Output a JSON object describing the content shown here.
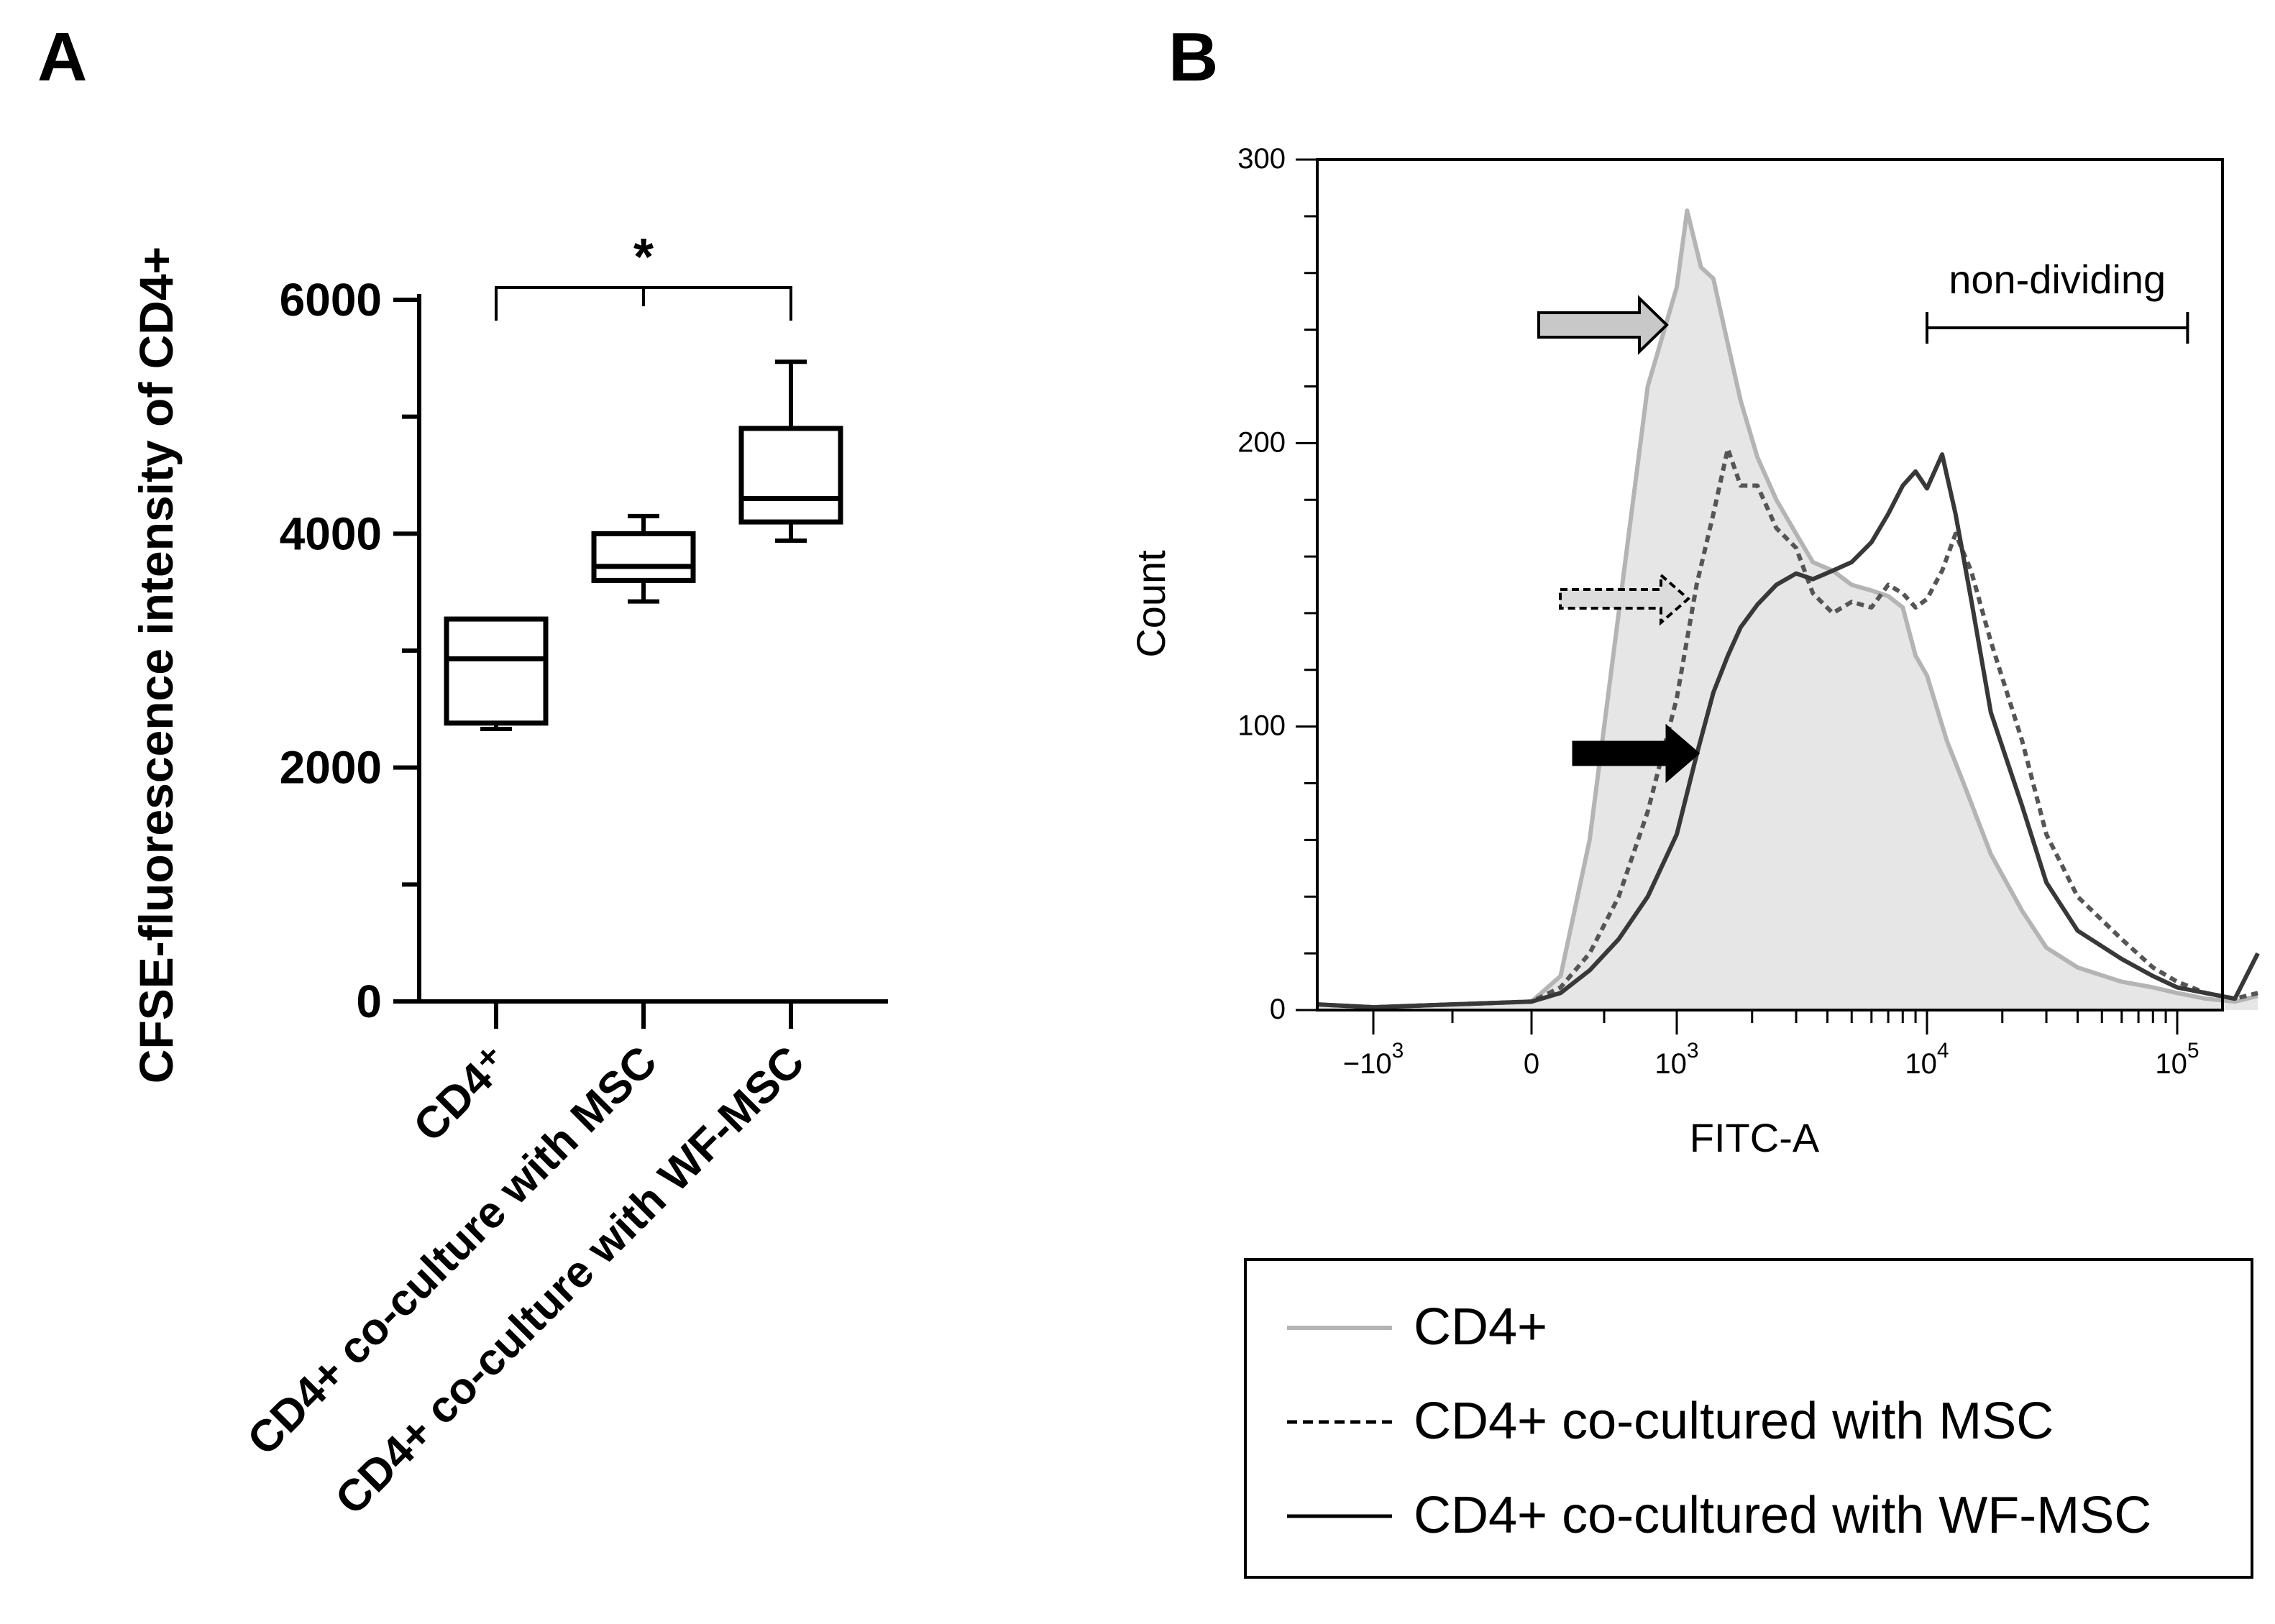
{
  "chart_data": [
    {
      "panel_label": "A",
      "type": "box",
      "ylabel": "CFSE-fluorescence intensity of CD4+",
      "ylim": [
        0,
        6000
      ],
      "yticks": [
        0,
        2000,
        4000,
        6000
      ],
      "ytick_labels": [
        "0",
        "2000",
        "4000",
        "6000"
      ],
      "categories": [
        "CD4⁺",
        "CD4+ co-culture with MSC",
        "CD4+ co-culture with WF-MSC"
      ],
      "boxes": [
        {
          "name": "CD4⁺",
          "min": 2330,
          "q1": 2380,
          "median": 2930,
          "q3": 3270,
          "max": 3270
        },
        {
          "name": "CD4+ co-culture with MSC",
          "min": 3420,
          "q1": 3600,
          "median": 3720,
          "q3": 4000,
          "max": 4150
        },
        {
          "name": "CD4+ co-culture with WF-MSC",
          "min": 3940,
          "q1": 4100,
          "median": 4300,
          "q3": 4900,
          "max": 5470
        }
      ],
      "significance": {
        "from": 0,
        "to": 2,
        "label": "*"
      }
    },
    {
      "panel_label": "B",
      "type": "line",
      "xlabel": "FITC-A",
      "ylabel": "Count",
      "ylim": [
        0,
        300
      ],
      "yticks": [
        0,
        100,
        200,
        300
      ],
      "ytick_labels": [
        "0",
        "100",
        "200",
        "300"
      ],
      "xticks": [
        {
          "value": -1000,
          "base": "−10",
          "exp": "3"
        },
        {
          "value": 0,
          "base": "0",
          "exp": ""
        },
        {
          "value": 1000,
          "base": "10",
          "exp": "3"
        },
        {
          "value": 10000,
          "base": "10",
          "exp": "4"
        },
        {
          "value": 100000,
          "base": "10",
          "exp": "5"
        }
      ],
      "gate": {
        "label": "non-dividing",
        "from": 10000,
        "to": 110000
      },
      "series": [
        {
          "name": "CD4+",
          "style": "solid-light-filled",
          "x": [
            -4000,
            -1000,
            0,
            200,
            400,
            600,
            800,
            1000,
            1100,
            1250,
            1400,
            1600,
            1800,
            2100,
            2500,
            3000,
            3500,
            4200,
            5000,
            6000,
            7000,
            8000,
            9000,
            10000,
            12000,
            14000,
            18000,
            24000,
            30000,
            40000,
            60000,
            80000,
            100000,
            130000,
            170000,
            210000
          ],
          "y": [
            2,
            1,
            3,
            12,
            60,
            140,
            220,
            255,
            282,
            262,
            258,
            235,
            215,
            195,
            180,
            168,
            158,
            155,
            150,
            148,
            146,
            142,
            125,
            118,
            95,
            80,
            55,
            35,
            22,
            15,
            10,
            8,
            6,
            4,
            3,
            5
          ]
        },
        {
          "name": "CD4+ co-cultured with MSC",
          "style": "dashed",
          "x": [
            -4000,
            -1000,
            0,
            200,
            400,
            600,
            800,
            1000,
            1200,
            1400,
            1600,
            1800,
            2100,
            2500,
            3000,
            3500,
            4200,
            5000,
            6000,
            7000,
            8000,
            9000,
            10000,
            11500,
            13000,
            15000,
            18000,
            24000,
            30000,
            40000,
            60000,
            80000,
            100000,
            130000,
            170000,
            210000
          ],
          "y": [
            2,
            1,
            3,
            8,
            20,
            40,
            70,
            110,
            150,
            175,
            198,
            185,
            185,
            170,
            163,
            147,
            140,
            144,
            142,
            150,
            147,
            142,
            145,
            155,
            168,
            155,
            130,
            95,
            62,
            40,
            25,
            15,
            10,
            6,
            4,
            6
          ]
        },
        {
          "name": "CD4+ co-cultured with WF-MSC",
          "style": "solid-dark",
          "x": [
            -4000,
            -1000,
            0,
            200,
            400,
            600,
            800,
            1000,
            1200,
            1400,
            1600,
            1800,
            2100,
            2500,
            3000,
            3500,
            4200,
            5000,
            6000,
            7000,
            8000,
            9000,
            10000,
            11500,
            13000,
            15000,
            18000,
            24000,
            30000,
            40000,
            60000,
            80000,
            100000,
            130000,
            170000,
            210000
          ],
          "y": [
            2,
            1,
            3,
            6,
            14,
            25,
            40,
            62,
            90,
            112,
            125,
            135,
            143,
            150,
            154,
            152,
            155,
            158,
            165,
            175,
            185,
            190,
            184,
            196,
            175,
            145,
            105,
            72,
            45,
            28,
            18,
            12,
            8,
            6,
            4,
            20
          ]
        }
      ],
      "legend": [
        "CD4+",
        "CD4+ co-cultured with MSC",
        "CD4+ co-cultured with WF-MSC"
      ],
      "colors": {
        "cd4_line": "#b4b4b4",
        "cd4_fill": "#e6e6e6",
        "msc_line": "#555555",
        "wf_line": "#383838",
        "arrow_gray": "#c8c8c8"
      }
    }
  ]
}
